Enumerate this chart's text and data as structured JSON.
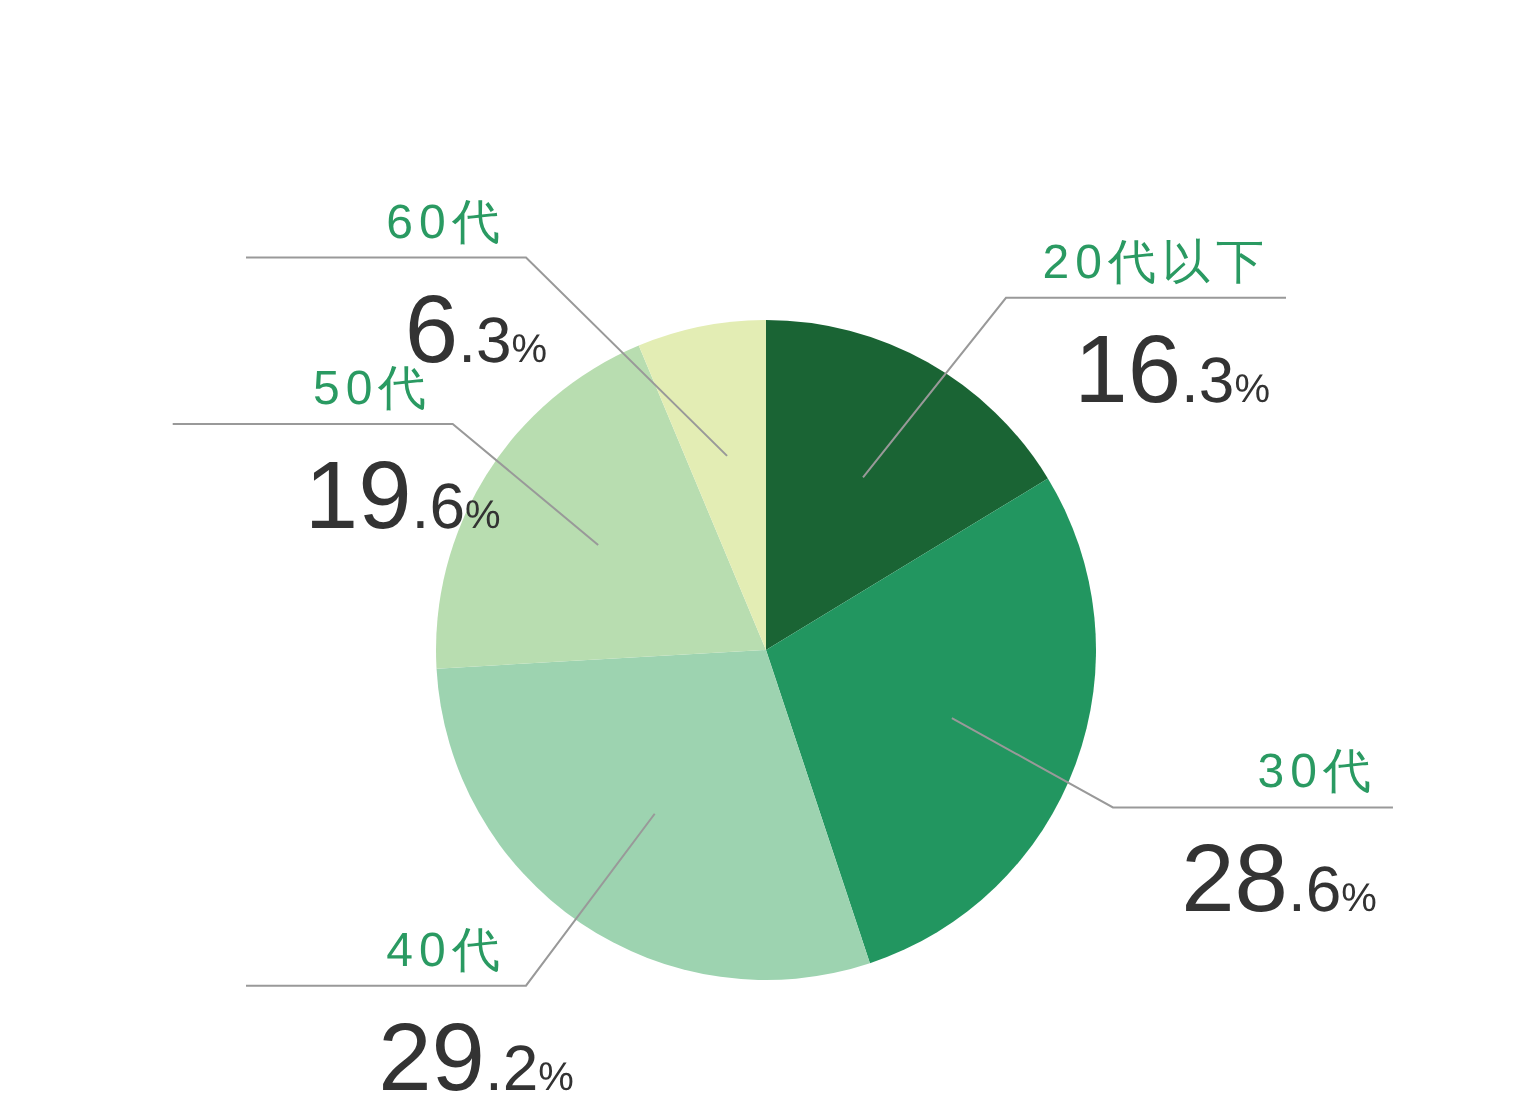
{
  "chart_data": {
    "type": "pie",
    "categories": [
      "20代以下",
      "30代",
      "40代",
      "50代",
      "60代"
    ],
    "values": [
      16.3,
      28.6,
      29.2,
      19.6,
      6.3
    ],
    "colors": [
      "#1a6434",
      "#229660",
      "#9dd3b0",
      "#b8ddb0",
      "#e3edb4"
    ],
    "value_labels": [
      "16.3%",
      "28.6%",
      "29.2%",
      "19.6%",
      "6.3%"
    ]
  }
}
